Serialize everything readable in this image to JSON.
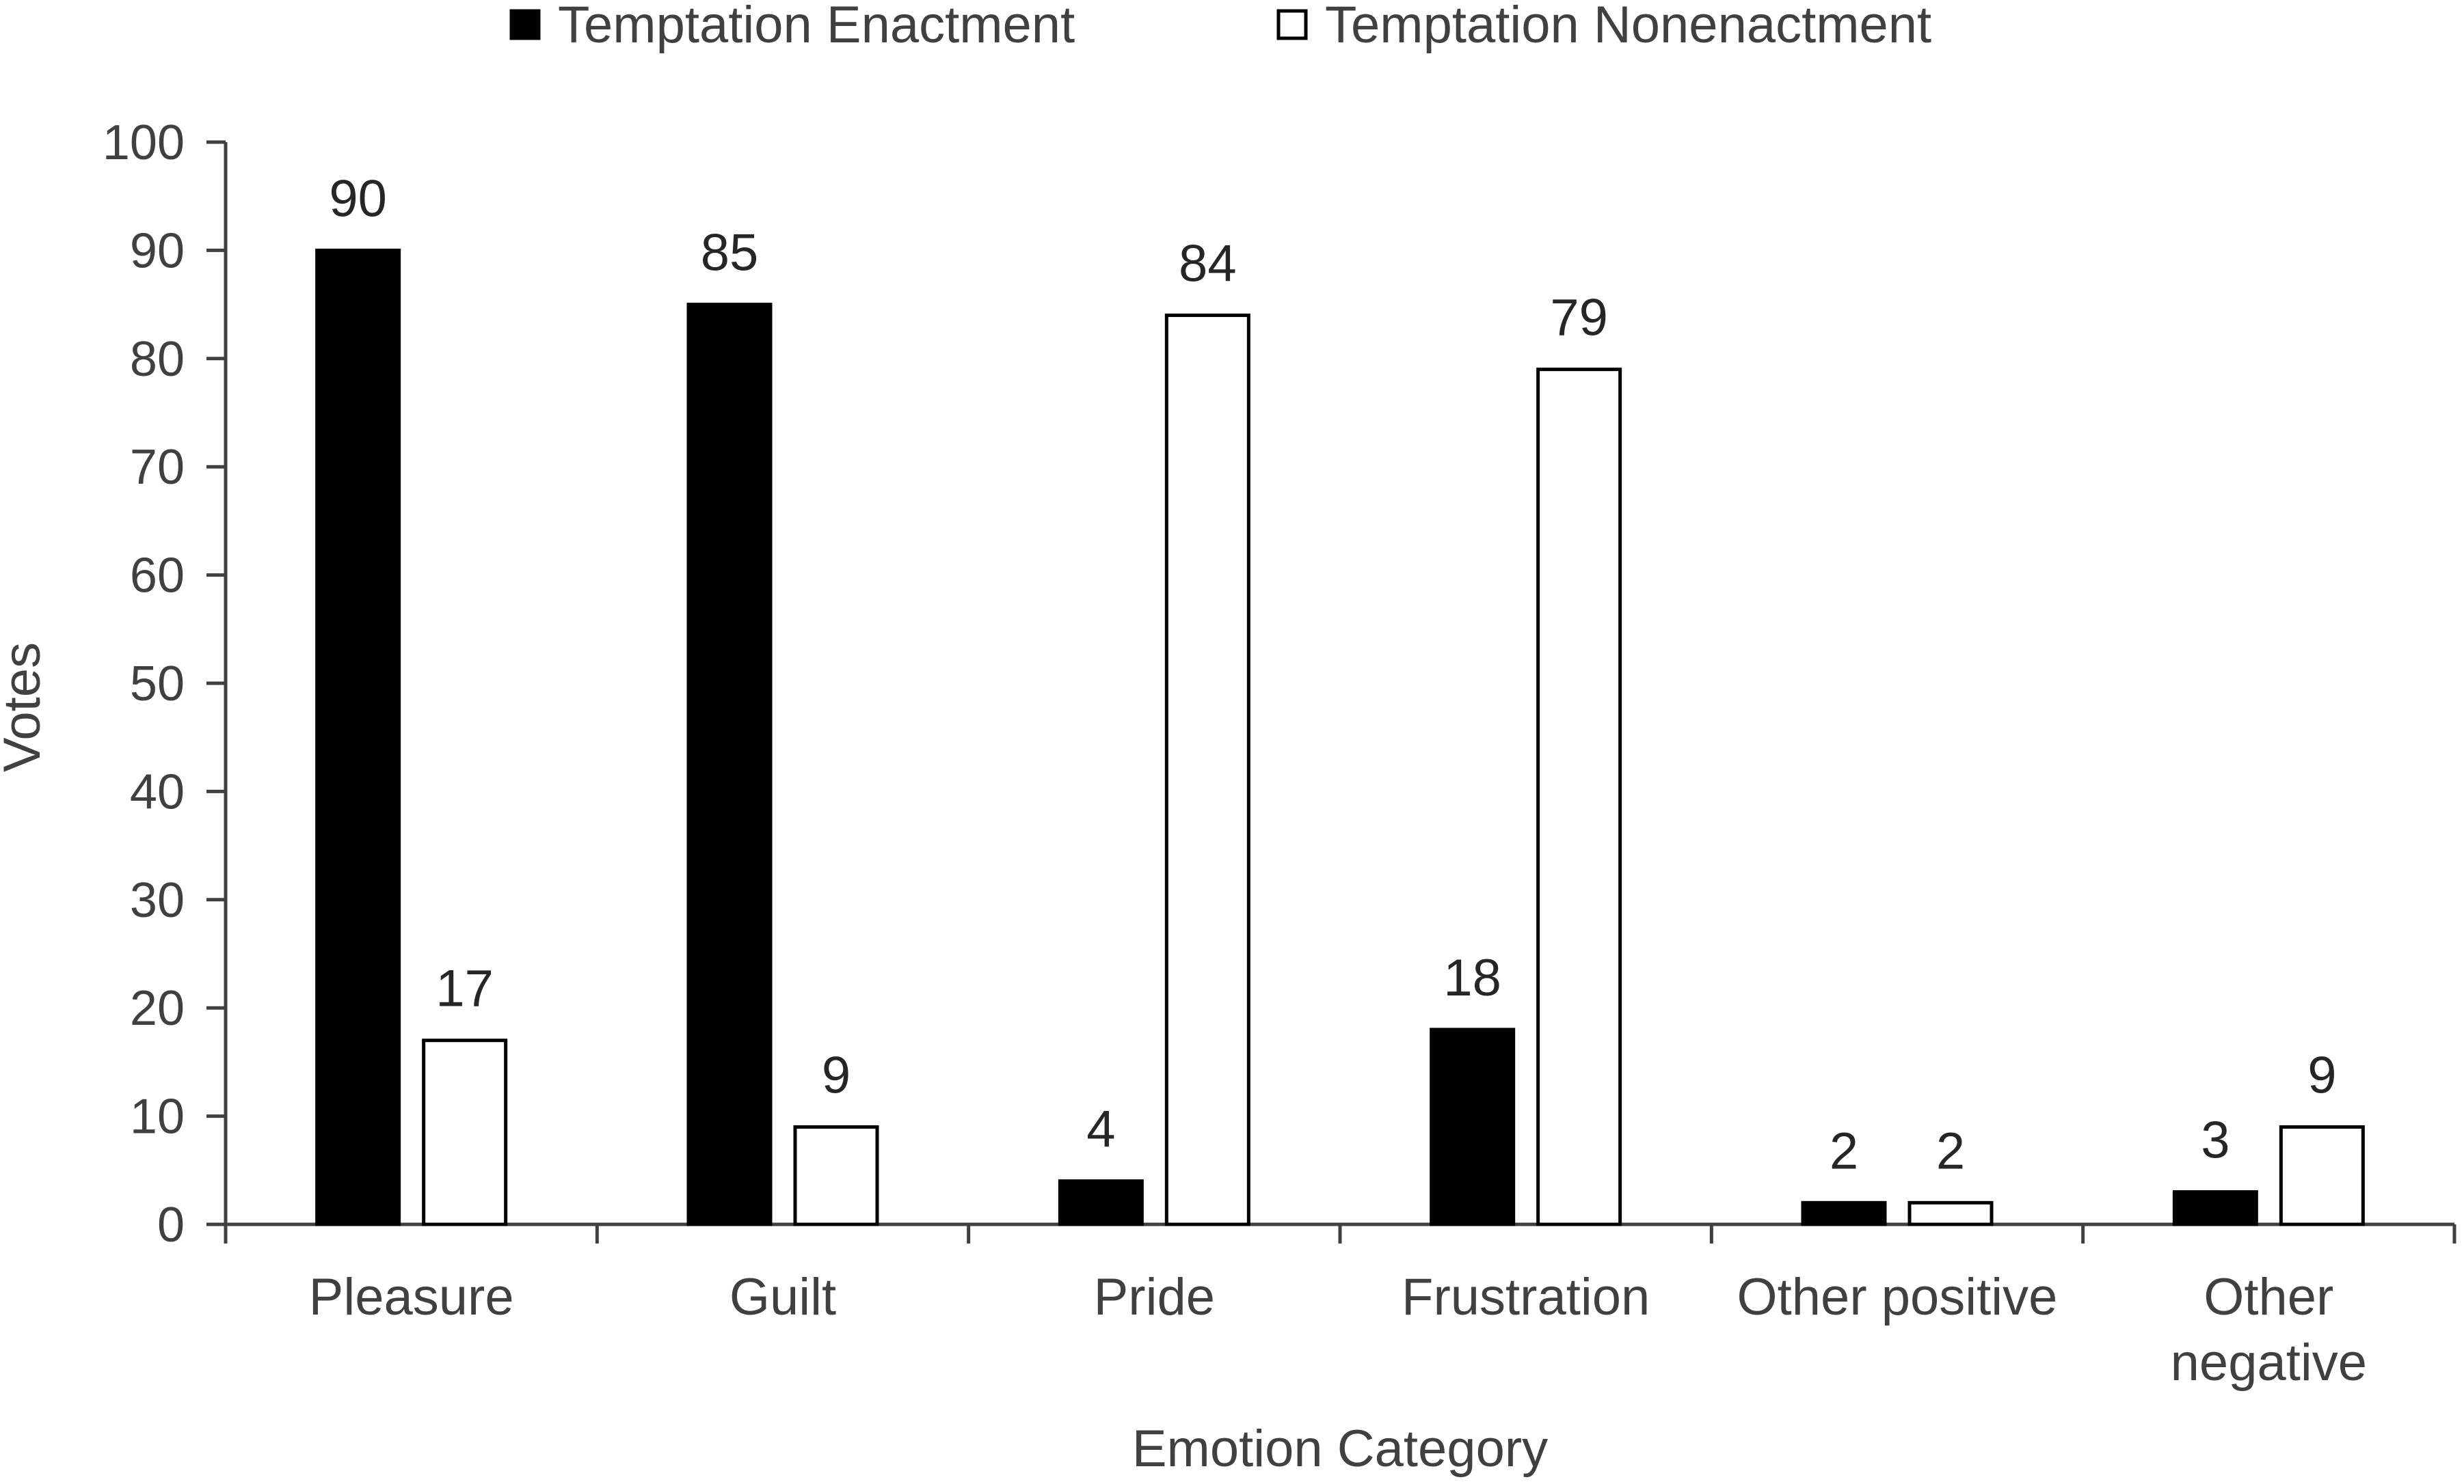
{
  "chart_data": {
    "type": "bar",
    "xlabel": "Emotion Category",
    "ylabel": "Votes",
    "ylim": [
      0,
      100
    ],
    "yticks": [
      0,
      10,
      20,
      30,
      40,
      50,
      60,
      70,
      80,
      90,
      100
    ],
    "categories": [
      [
        "Pleasure"
      ],
      [
        "Guilt"
      ],
      [
        "Pride"
      ],
      [
        "Frustration"
      ],
      [
        "Other positive"
      ],
      [
        "Other",
        "negative"
      ]
    ],
    "series": [
      {
        "name": "Temptation Enactment",
        "values": [
          90,
          85,
          4,
          18,
          2,
          3
        ],
        "color": "#000000"
      },
      {
        "name": "Temptation Nonenactment",
        "values": [
          17,
          9,
          84,
          79,
          2,
          9
        ],
        "color": "#ffffff"
      }
    ],
    "legend": "top-center",
    "grid": false,
    "data_labels": true
  }
}
